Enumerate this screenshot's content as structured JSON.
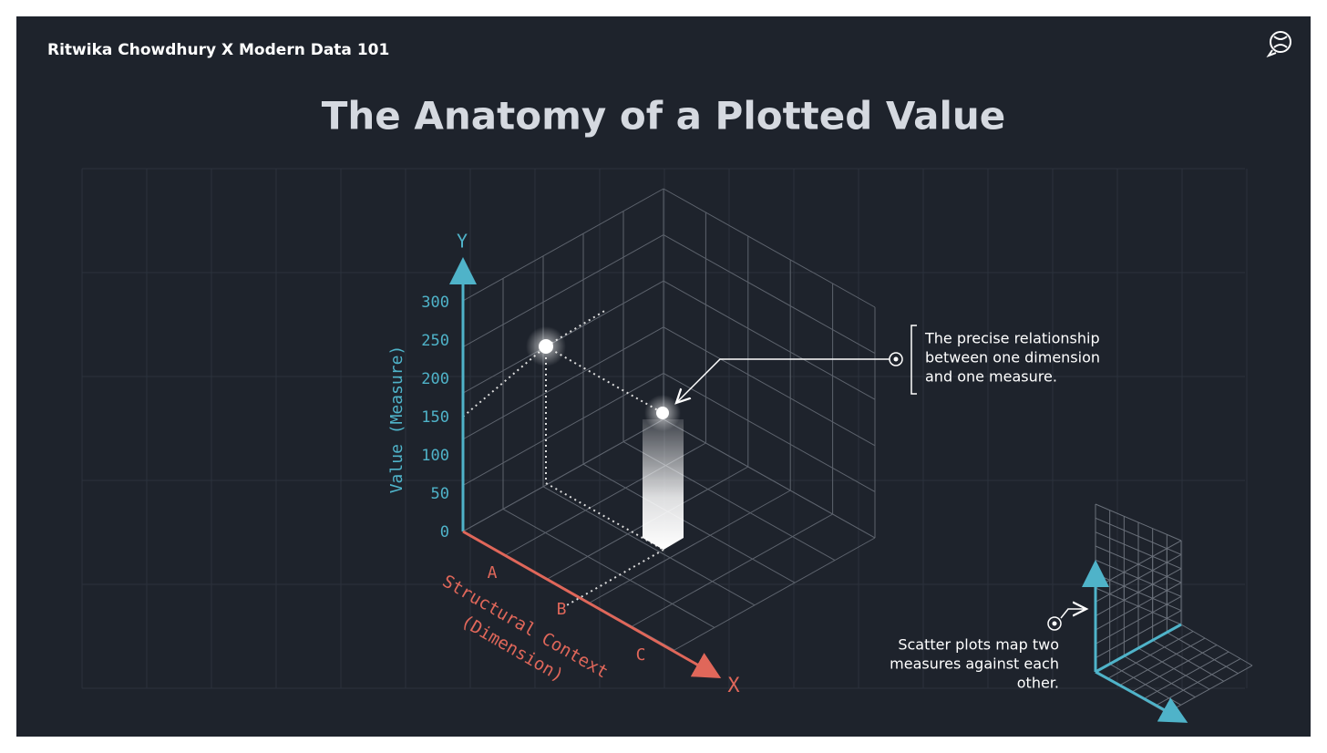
{
  "header": {
    "author": "Ritwika Chowdhury X Modern Data 101",
    "title": "The Anatomy of a Plotted Value"
  },
  "diagram": {
    "y_axis": {
      "letter": "Y",
      "title": "Value (Measure)",
      "ticks": [
        "0",
        "50",
        "100",
        "150",
        "200",
        "250",
        "300"
      ]
    },
    "x_axis": {
      "letter": "X",
      "title_lines": [
        "Structural Context",
        "(Dimension)"
      ],
      "categories": [
        "A",
        "B",
        "C"
      ]
    },
    "callout": {
      "lines": [
        "The precise relationship",
        "between one dimension",
        "and one measure."
      ]
    },
    "scatter_note": {
      "lines": [
        "Scatter plots map two",
        "measures against each",
        "other."
      ]
    }
  }
}
